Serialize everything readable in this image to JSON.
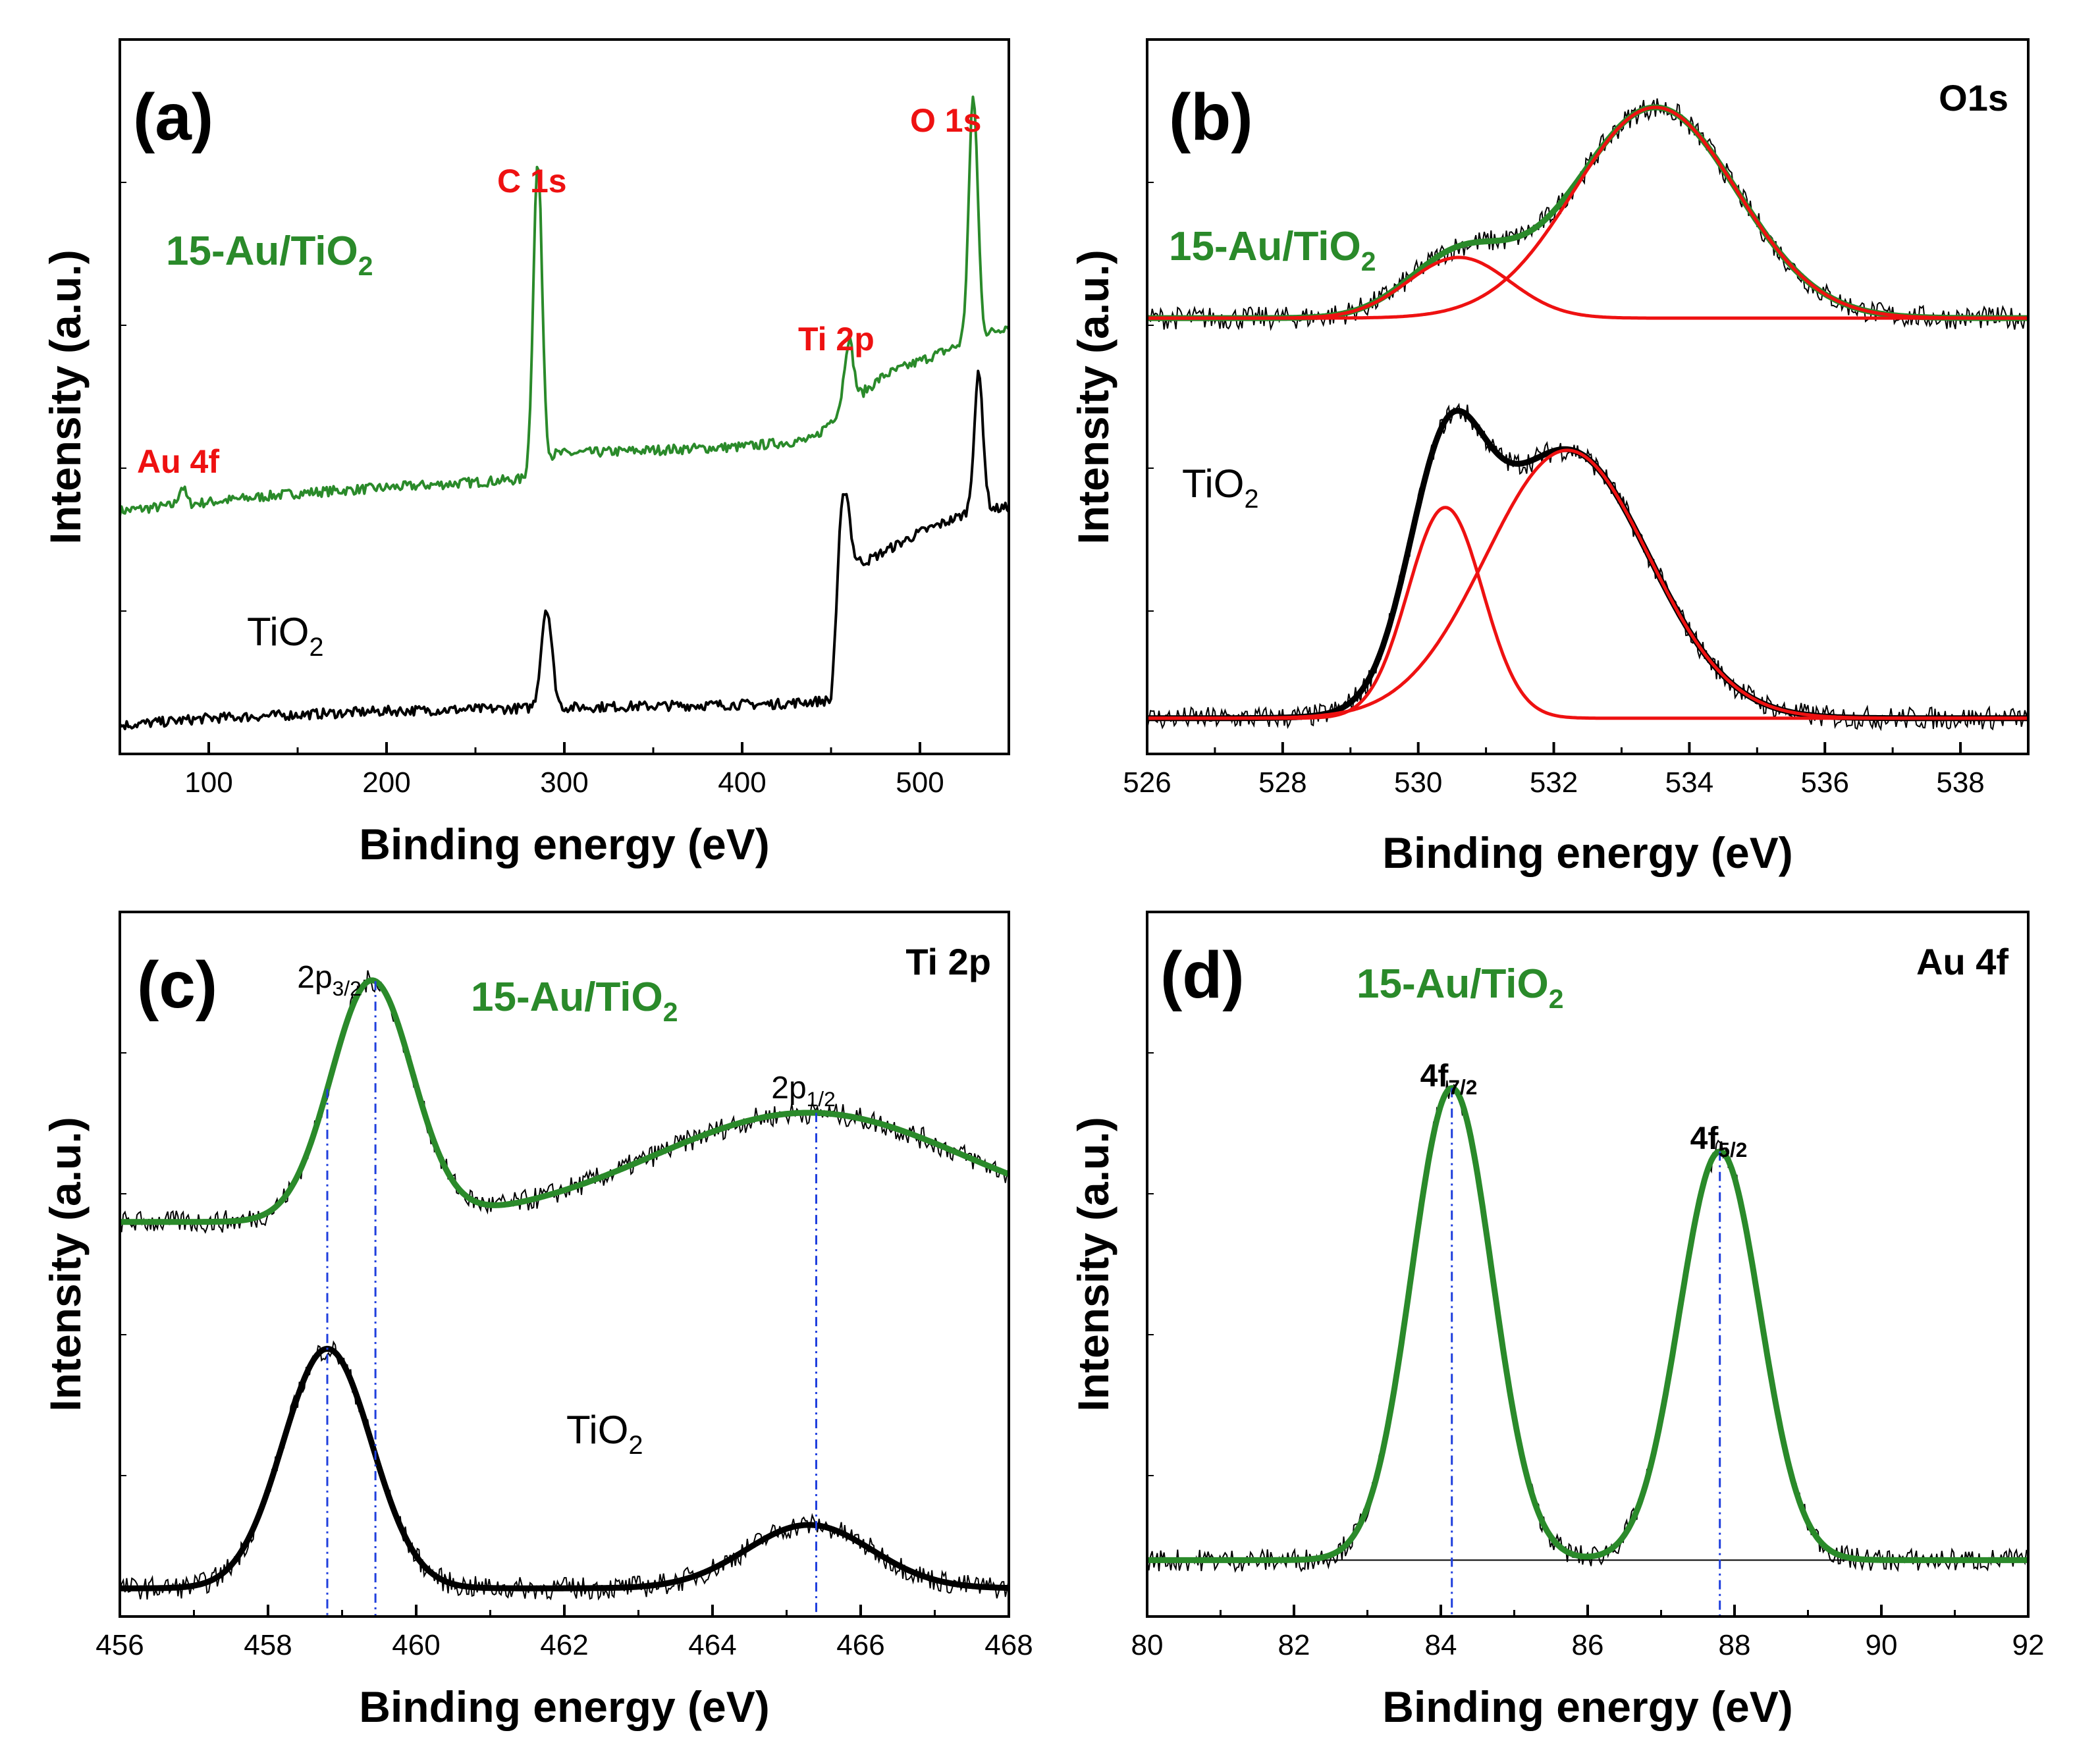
{
  "chart_data": [
    {
      "id": "a",
      "type": "line",
      "panel_label": "(a)",
      "xlabel": "Binding energy (eV)",
      "ylabel": "Intensity (a.u.)",
      "xlim": [
        50,
        550
      ],
      "ylim": [
        0,
        100
      ],
      "xticks": [
        100,
        200,
        300,
        400,
        500
      ],
      "annotations": [
        {
          "text": "Au 4f",
          "x": 85,
          "y": 42
        },
        {
          "text": "C 1s",
          "x": 285,
          "y": 84
        },
        {
          "text": "Ti 2p",
          "x": 460,
          "y": 62
        },
        {
          "text": "O 1s",
          "x": 530,
          "y": 96
        }
      ],
      "series": [
        {
          "name": "15-Au/TiO2",
          "color": "#2a8a2a",
          "kind": "survey",
          "baseline": [
            [
              50,
              34
            ],
            [
              150,
              36.5
            ],
            [
              280,
              38.5
            ],
            [
              295,
              42
            ],
            [
              400,
              43
            ],
            [
              440,
              44
            ],
            [
              455,
              48
            ],
            [
              480,
              53
            ],
            [
              530,
              58
            ],
            [
              550,
              60
            ]
          ],
          "peaks": [
            [
              85,
              2.5,
              2
            ],
            [
              285,
              43,
              2.5
            ],
            [
              460,
              9,
              2.5
            ],
            [
              530,
              34,
              2.5
            ]
          ]
        },
        {
          "name": "TiO2",
          "color": "#000000",
          "kind": "survey",
          "baseline": [
            [
              50,
              4
            ],
            [
              100,
              5
            ],
            [
              200,
              6
            ],
            [
              300,
              6.5
            ],
            [
              420,
              7
            ],
            [
              450,
              7.5
            ],
            [
              455,
              27
            ],
            [
              470,
              27
            ],
            [
              500,
              31
            ],
            [
              530,
              34
            ],
            [
              550,
              34.5
            ]
          ],
          "peaks": [
            [
              290,
              14,
              3
            ],
            [
              458,
              10,
              2.5
            ],
            [
              533,
              19,
              2.5
            ]
          ]
        }
      ],
      "labels": [
        {
          "series": "15-Au/TiO2",
          "base": "15-Au/TiO",
          "sub": "2"
        },
        {
          "series": "TiO2",
          "base": "TiO",
          "sub": "2"
        }
      ]
    },
    {
      "id": "b",
      "type": "line",
      "panel_label": "(b)",
      "corner_label": "O1s",
      "xlabel": "Binding energy (eV)",
      "ylabel": "Intensity (a.u.)",
      "xlim": [
        526,
        539
      ],
      "ylim": [
        0,
        100
      ],
      "xticks": [
        526,
        528,
        530,
        532,
        534,
        536,
        538
      ],
      "series": [
        {
          "name": "15-Au/TiO2",
          "role": "envelope",
          "color": "#2a8a2a",
          "offset": 61,
          "components": [
            [
              530.6,
              8.5,
              0.75
            ],
            [
              533.5,
              29.5,
              1.2
            ]
          ]
        },
        {
          "name": "15-Au/TiO2 component 1",
          "role": "component",
          "color": "#ee1111",
          "offset": 61,
          "components": [
            [
              530.6,
              8.5,
              0.75
            ]
          ]
        },
        {
          "name": "15-Au/TiO2 component 2",
          "role": "component",
          "color": "#ee1111",
          "offset": 61,
          "components": [
            [
              533.5,
              29.5,
              1.2
            ]
          ]
        },
        {
          "name": "TiO2",
          "role": "envelope",
          "color": "#000000",
          "offset": 5,
          "components": [
            [
              530.4,
              29.5,
              0.55
            ],
            [
              532.2,
              37.5,
              1.2
            ]
          ]
        },
        {
          "name": "TiO2 component 1",
          "role": "component",
          "color": "#ee1111",
          "offset": 5,
          "components": [
            [
              530.4,
              29.5,
              0.55
            ]
          ]
        },
        {
          "name": "TiO2 component 2",
          "role": "component",
          "color": "#ee1111",
          "offset": 5,
          "components": [
            [
              532.2,
              37.5,
              1.2
            ]
          ]
        }
      ],
      "labels": [
        {
          "series": "15-Au/TiO2",
          "base": "15-Au/TiO",
          "sub": "2"
        },
        {
          "series": "TiO2",
          "base": "TiO",
          "sub": "2"
        }
      ]
    },
    {
      "id": "c",
      "type": "line",
      "panel_label": "(c)",
      "corner_label": "Ti 2p",
      "xlabel": "Binding energy (eV)",
      "ylabel": "Intensity (a.u.)",
      "xlim": [
        456,
        468
      ],
      "ylim": [
        0,
        100
      ],
      "xticks": [
        456,
        458,
        460,
        462,
        464,
        466,
        468
      ],
      "series": [
        {
          "name": "15-Au/TiO2",
          "role": "envelope",
          "color": "#2a8a2a",
          "offset": 56,
          "components": [
            [
              459.4,
              34,
              0.55
            ],
            [
              465.3,
              15.5,
              2.1
            ]
          ]
        },
        {
          "name": "TiO2",
          "role": "envelope",
          "color": "#000000",
          "offset": 4,
          "components": [
            [
              458.8,
              34,
              0.6
            ],
            [
              465.3,
              9,
              0.85
            ]
          ]
        }
      ],
      "peak_markers": [
        458.8,
        459.45,
        465.4
      ],
      "peak_labels": [
        {
          "base": "2p",
          "sub": "3/2",
          "x": 459.4,
          "y": 93
        },
        {
          "base": "2p",
          "sub": "1/2",
          "x": 465.4,
          "y": 72
        }
      ],
      "labels": [
        {
          "series": "15-Au/TiO2",
          "base": "15-Au/TiO",
          "sub": "2"
        },
        {
          "series": "TiO2",
          "base": "TiO",
          "sub": "2"
        }
      ]
    },
    {
      "id": "d",
      "type": "line",
      "panel_label": "(d)",
      "corner_label": "Au 4f",
      "xlabel": "Binding energy (eV)",
      "ylabel": "Intensity (a.u.)",
      "xlim": [
        80,
        92
      ],
      "ylim": [
        0,
        100
      ],
      "xticks": [
        80,
        82,
        84,
        86,
        88,
        90,
        92
      ],
      "baseline_y": 8,
      "series": [
        {
          "name": "15-Au/TiO2",
          "role": "envelope",
          "color": "#2a8a2a",
          "offset": 8,
          "components": [
            [
              84.15,
              67,
              0.55
            ],
            [
              87.8,
              58,
              0.55
            ]
          ]
        }
      ],
      "peak_markers": [
        84.15,
        87.8
      ],
      "peak_labels": [
        {
          "base": "4f",
          "sub": "7/2",
          "x": 84.15,
          "y": 81
        },
        {
          "base": "4f",
          "sub": "5/2",
          "x": 87.8,
          "y": 72
        }
      ],
      "labels": [
        {
          "series": "15-Au/TiO2",
          "base": "15-Au/TiO",
          "sub": "2"
        }
      ]
    }
  ],
  "colors": {
    "green": "#2a8a2a",
    "red": "#ee1111",
    "black": "#000000",
    "blue": "#1f3fdd"
  }
}
